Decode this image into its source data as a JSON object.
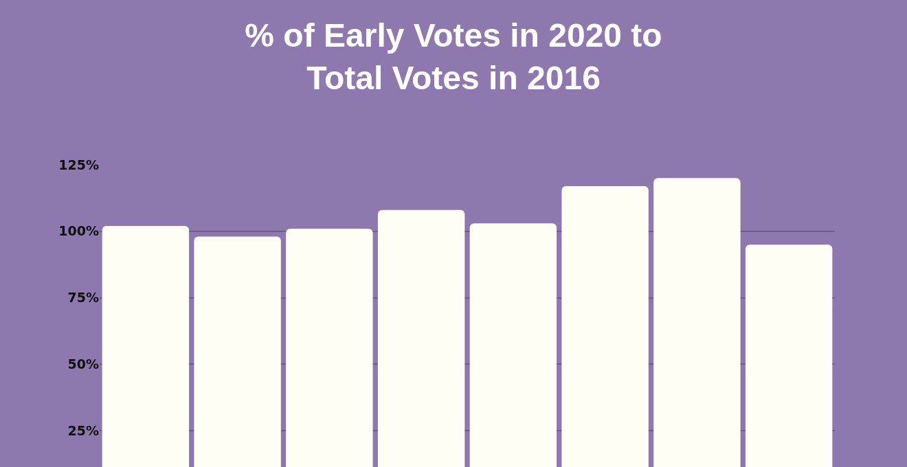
{
  "chart_data": {
    "type": "bar",
    "title": "% of Early Votes in 2020 to Total Votes in 2016",
    "categories": [
      null,
      null,
      null,
      null,
      null,
      null,
      null,
      null
    ],
    "values": [
      102,
      98,
      101,
      108,
      103,
      117,
      120,
      95
    ],
    "color": "#fefef4",
    "ylim": [
      11.4,
      125
    ],
    "yticks": [
      {
        "value": 25,
        "label": "25%"
      },
      {
        "value": 50,
        "label": "50%"
      },
      {
        "value": 75,
        "label": "75%"
      },
      {
        "value": 100,
        "label": "100%"
      },
      {
        "value": 125,
        "label": "125%"
      }
    ],
    "grid": "y",
    "tick_labels": "y"
  }
}
